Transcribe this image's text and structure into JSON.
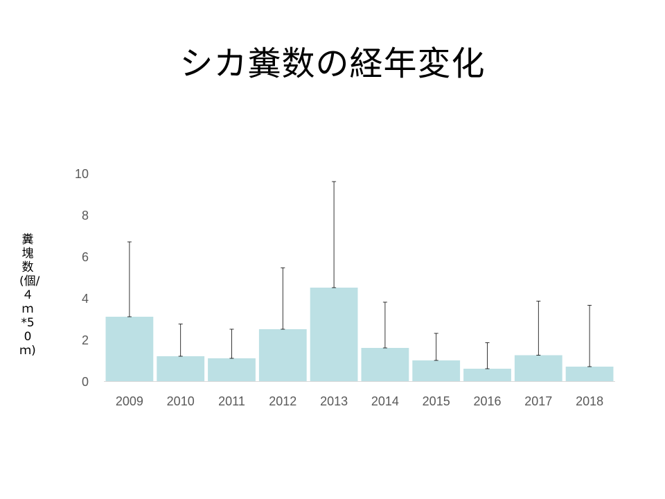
{
  "chart_data": {
    "type": "bar",
    "title": "シカ糞数の経年変化",
    "ylabel": "糞塊数(個/４ｍ*50ｍ)",
    "xlabel": "",
    "categories": [
      "2009",
      "2010",
      "2011",
      "2012",
      "2013",
      "2014",
      "2015",
      "2016",
      "2017",
      "2018"
    ],
    "values": [
      3.1,
      1.2,
      1.1,
      2.5,
      4.5,
      1.6,
      1.0,
      0.6,
      1.25,
      0.7
    ],
    "error_upper": [
      6.7,
      2.75,
      2.5,
      5.45,
      9.6,
      3.8,
      2.3,
      1.85,
      3.85,
      3.65
    ],
    "yticks": [
      "0",
      "2",
      "4",
      "6",
      "8",
      "10"
    ],
    "ylim": [
      0,
      10
    ],
    "bar_color": "#bce0e4",
    "grid": false
  }
}
